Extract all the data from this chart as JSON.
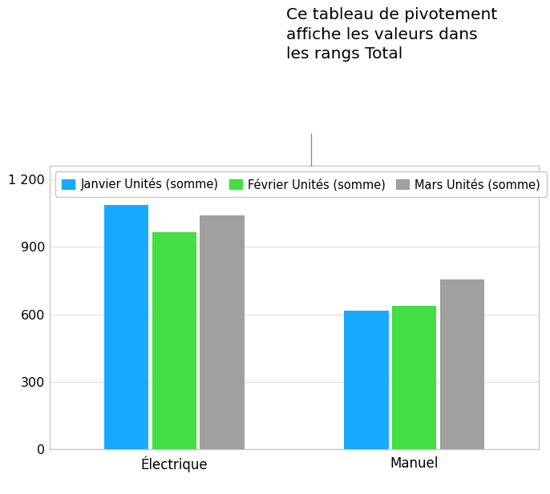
{
  "categories": [
    "Électrique",
    "Manuel"
  ],
  "series": [
    {
      "label": "Janvier Unités (somme)",
      "values": [
        1085,
        615
      ],
      "color": "#19AAFF"
    },
    {
      "label": "Février Unités (somme)",
      "values": [
        965,
        638
      ],
      "color": "#44DD44"
    },
    {
      "label": "Mars Unités (somme)",
      "values": [
        1040,
        755
      ],
      "color": "#A0A0A0"
    }
  ],
  "ylim": [
    0,
    1260
  ],
  "yticks": [
    0,
    300,
    600,
    900,
    1200
  ],
  "ytick_labels": [
    "0",
    "300",
    "600",
    "900",
    "1 200"
  ],
  "annotation_text": "Ce tableau de pivotement\naffiche les valeurs dans\nles rangs Total",
  "background_color": "#ffffff",
  "chart_bg_color": "#ffffff",
  "grid_color": "#dddddd",
  "bar_width": 0.2,
  "legend_fontsize": 10.5,
  "tick_fontsize": 11.5,
  "annotation_fontsize": 14.5,
  "frame_color": "#c8c8c8",
  "frame_linewidth": 1.0
}
